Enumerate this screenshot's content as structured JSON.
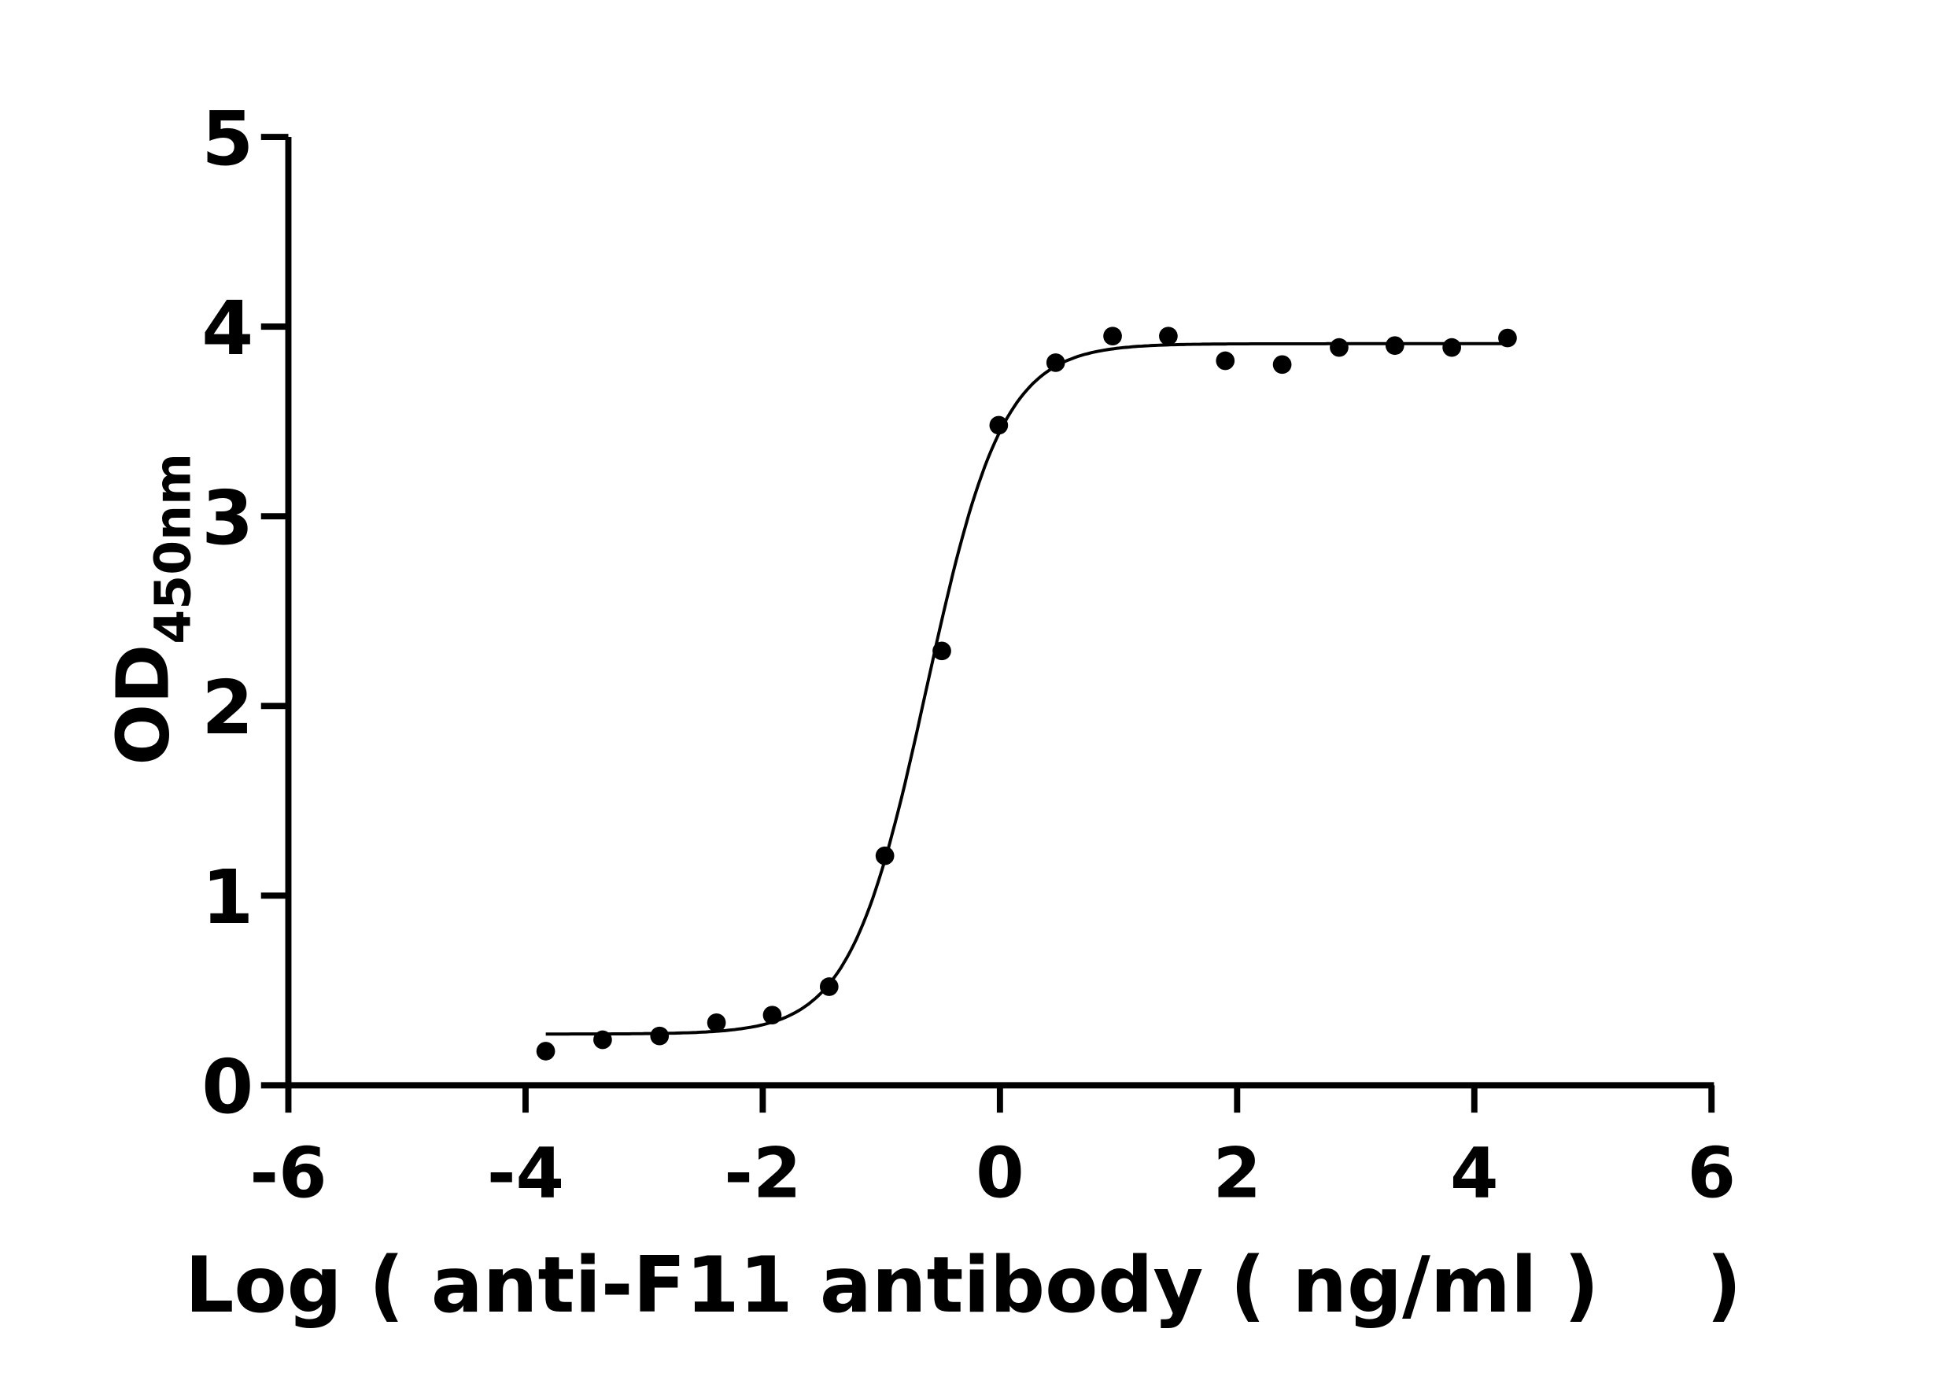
{
  "chart_data": {
    "type": "scatter",
    "title": "",
    "xlabel": "Log ( anti-F11 antibody ( ng/ml )    )",
    "ylabel": "OD",
    "ylabel_subscript": "450nm",
    "xlim": [
      -6,
      6
    ],
    "ylim": [
      0,
      5
    ],
    "xticks": [
      -6,
      -4,
      -2,
      0,
      2,
      4,
      6
    ],
    "yticks": [
      0,
      1,
      2,
      3,
      4,
      5
    ],
    "grid": false,
    "legend": "none",
    "point_color": "#000000",
    "series": [
      {
        "x": [
          -3.83,
          -3.35,
          -2.87,
          -2.39,
          -1.92,
          -1.44,
          -0.97,
          -0.49,
          -0.01,
          0.47,
          0.95,
          1.42,
          1.9,
          2.38,
          2.86,
          3.33,
          3.81,
          4.28
        ],
        "y": [
          0.18,
          0.24,
          0.26,
          0.33,
          0.37,
          0.52,
          1.21,
          2.29,
          3.48,
          3.81,
          3.95,
          3.95,
          3.82,
          3.8,
          3.89,
          3.9,
          3.89,
          3.94
        ]
      }
    ],
    "fit": {
      "model": "4PL",
      "bottom": 0.27,
      "top": 3.91,
      "logEC50": -0.62,
      "hill": 1.35,
      "x_range": [
        -3.83,
        4.28
      ]
    }
  }
}
